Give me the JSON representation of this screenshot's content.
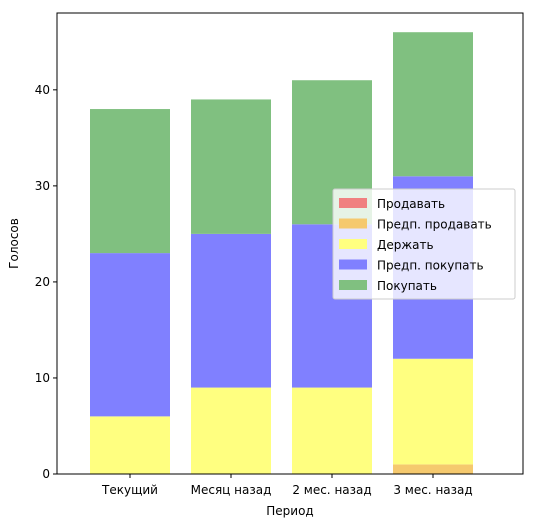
{
  "chart_data": {
    "type": "bar",
    "stacked": true,
    "categories": [
      "Текущий",
      "Месяц назад",
      "2 мес. назад",
      "3 мес. назад"
    ],
    "series": [
      {
        "name": "Продавать",
        "color": "#f08080",
        "values": [
          0,
          0,
          0,
          0
        ]
      },
      {
        "name": "Предп. продавать",
        "color": "#f5c96e",
        "values": [
          0,
          0,
          0,
          1
        ]
      },
      {
        "name": "Держать",
        "color": "#ffff80",
        "values": [
          6,
          9,
          9,
          11
        ]
      },
      {
        "name": "Предп. покупать",
        "color": "#8080ff",
        "values": [
          17,
          16,
          17,
          19
        ]
      },
      {
        "name": "Покупать",
        "color": "#80c080",
        "values": [
          15,
          14,
          15,
          15
        ]
      }
    ],
    "title": "",
    "xlabel": "Период",
    "ylabel": "Голосов",
    "ylim": [
      0,
      48
    ],
    "yticks": [
      0,
      10,
      20,
      30,
      40
    ],
    "grid": false,
    "legend_position": "center-right"
  }
}
